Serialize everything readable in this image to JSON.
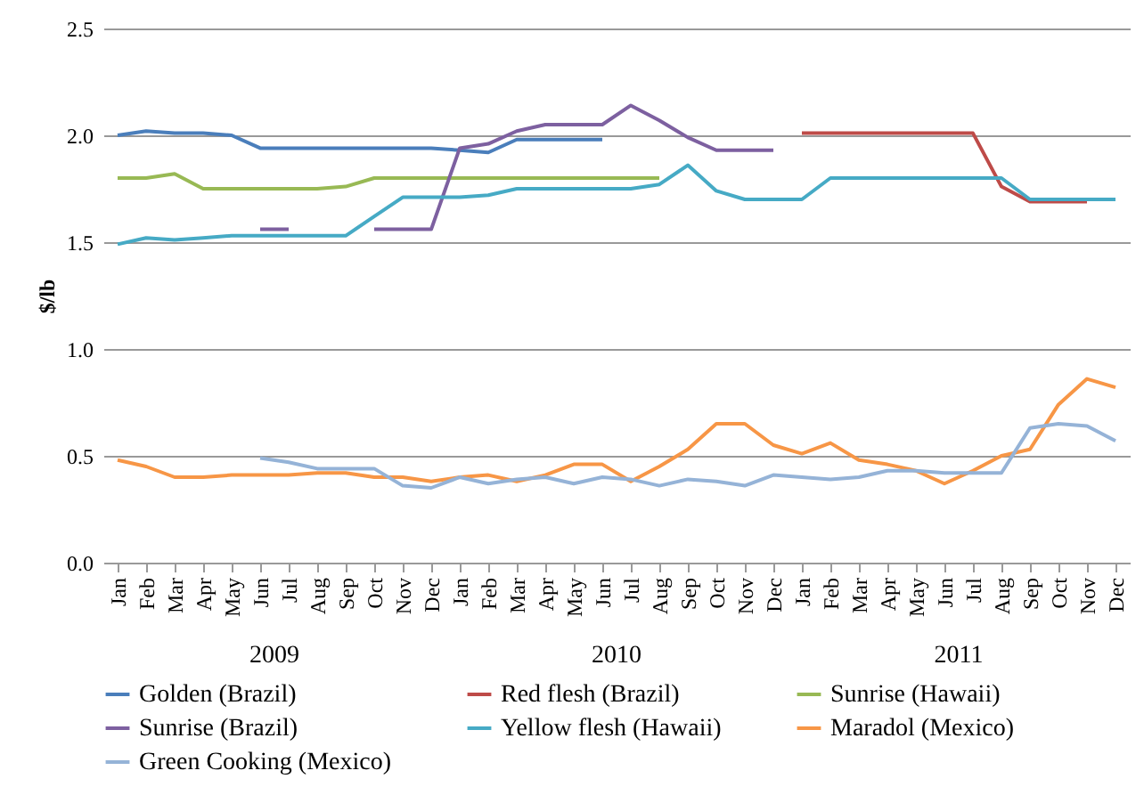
{
  "chart_data": {
    "type": "line",
    "ylabel": "$/lb",
    "categories": [
      "Jan",
      "Feb",
      "Mar",
      "Apr",
      "May",
      "Jun",
      "Jul",
      "Aug",
      "Sep",
      "Oct",
      "Nov",
      "Dec",
      "Jan",
      "Feb",
      "Mar",
      "Apr",
      "May",
      "Jun",
      "Jul",
      "Aug",
      "Sep",
      "Oct",
      "Nov",
      "Dec",
      "Jan",
      "Feb",
      "Mar",
      "Apr",
      "May",
      "Jun",
      "Jul",
      "Aug",
      "Sep",
      "Oct",
      "Nov",
      "Dec"
    ],
    "annotations": [
      "2009",
      "2010",
      "2011"
    ],
    "ylim": [
      0,
      2.5
    ],
    "yticks": [
      {
        "value": 0,
        "label": "0.0"
      },
      {
        "value": 0.5,
        "label": "0.5"
      },
      {
        "value": 1,
        "label": "1.0"
      },
      {
        "value": 1.5,
        "label": "1.5"
      },
      {
        "value": 2,
        "label": "2.0"
      },
      {
        "value": 2.5,
        "label": "2.5"
      }
    ],
    "grid": "y",
    "legend": "bottom",
    "marker": "none",
    "line_style": "solid",
    "series": [
      {
        "name": "Golden (Brazil)",
        "color": "#4a7ebb",
        "values": [
          2.0,
          2.02,
          2.01,
          2.01,
          2.0,
          1.94,
          1.94,
          1.94,
          1.94,
          1.94,
          1.94,
          1.94,
          1.93,
          1.92,
          1.98,
          1.98,
          1.98,
          1.98,
          null,
          null,
          null,
          null,
          null,
          null,
          null,
          null,
          null,
          null,
          null,
          null,
          null,
          null,
          null,
          null,
          null,
          null
        ]
      },
      {
        "name": "Red flesh (Brazil)",
        "color": "#be4b48",
        "values": [
          null,
          null,
          null,
          null,
          null,
          null,
          null,
          null,
          null,
          null,
          null,
          null,
          null,
          null,
          null,
          null,
          null,
          null,
          null,
          null,
          null,
          null,
          null,
          null,
          2.01,
          2.01,
          2.01,
          2.01,
          2.01,
          2.01,
          2.01,
          1.76,
          1.69,
          1.69,
          1.69,
          null
        ]
      },
      {
        "name": "Sunrise (Hawaii)",
        "color": "#98b954",
        "values": [
          1.8,
          1.8,
          1.82,
          1.75,
          1.75,
          1.75,
          1.75,
          1.75,
          1.76,
          1.8,
          1.8,
          1.8,
          1.8,
          1.8,
          1.8,
          1.8,
          1.8,
          1.8,
          1.8,
          1.8,
          null,
          null,
          null,
          null,
          null,
          null,
          null,
          null,
          null,
          null,
          null,
          null,
          null,
          null,
          null,
          null
        ]
      },
      {
        "name": "Sunrise (Brazil)",
        "color": "#7d60a0",
        "values": [
          null,
          null,
          null,
          null,
          null,
          1.56,
          1.56,
          null,
          null,
          1.56,
          1.56,
          1.56,
          1.94,
          1.96,
          2.02,
          2.05,
          2.05,
          2.05,
          2.14,
          2.07,
          1.99,
          1.93,
          1.93,
          1.93,
          null,
          null,
          null,
          null,
          null,
          null,
          null,
          null,
          null,
          null,
          null,
          null
        ]
      },
      {
        "name": "Yellow flesh (Hawaii)",
        "color": "#46aac5",
        "values": [
          1.49,
          1.52,
          1.51,
          1.52,
          1.53,
          1.53,
          1.53,
          1.53,
          1.53,
          1.62,
          1.71,
          1.71,
          1.71,
          1.72,
          1.75,
          1.75,
          1.75,
          1.75,
          1.75,
          1.77,
          1.86,
          1.74,
          1.7,
          1.7,
          1.7,
          1.8,
          1.8,
          1.8,
          1.8,
          1.8,
          1.8,
          1.8,
          1.7,
          1.7,
          1.7,
          1.7
        ]
      },
      {
        "name": "Maradol (Mexico)",
        "color": "#f79646",
        "values": [
          0.48,
          0.45,
          0.4,
          0.4,
          0.41,
          0.41,
          0.41,
          0.42,
          0.42,
          0.4,
          0.4,
          0.38,
          0.4,
          0.41,
          0.38,
          0.41,
          0.46,
          0.46,
          0.38,
          0.45,
          0.53,
          0.65,
          0.65,
          0.55,
          0.51,
          0.56,
          0.48,
          0.46,
          0.43,
          0.37,
          0.43,
          0.5,
          0.53,
          0.74,
          0.86,
          0.82
        ]
      },
      {
        "name": "Green Cooking (Mexico)",
        "color": "#95b3d7",
        "values": [
          null,
          null,
          null,
          null,
          null,
          0.49,
          0.47,
          0.44,
          0.44,
          0.44,
          0.36,
          0.35,
          0.4,
          0.37,
          0.39,
          0.4,
          0.37,
          0.4,
          0.39,
          0.36,
          0.39,
          0.38,
          0.36,
          0.41,
          0.4,
          0.39,
          0.4,
          0.43,
          0.43,
          0.42,
          0.42,
          0.42,
          0.63,
          0.65,
          0.64,
          0.57
        ]
      }
    ]
  }
}
